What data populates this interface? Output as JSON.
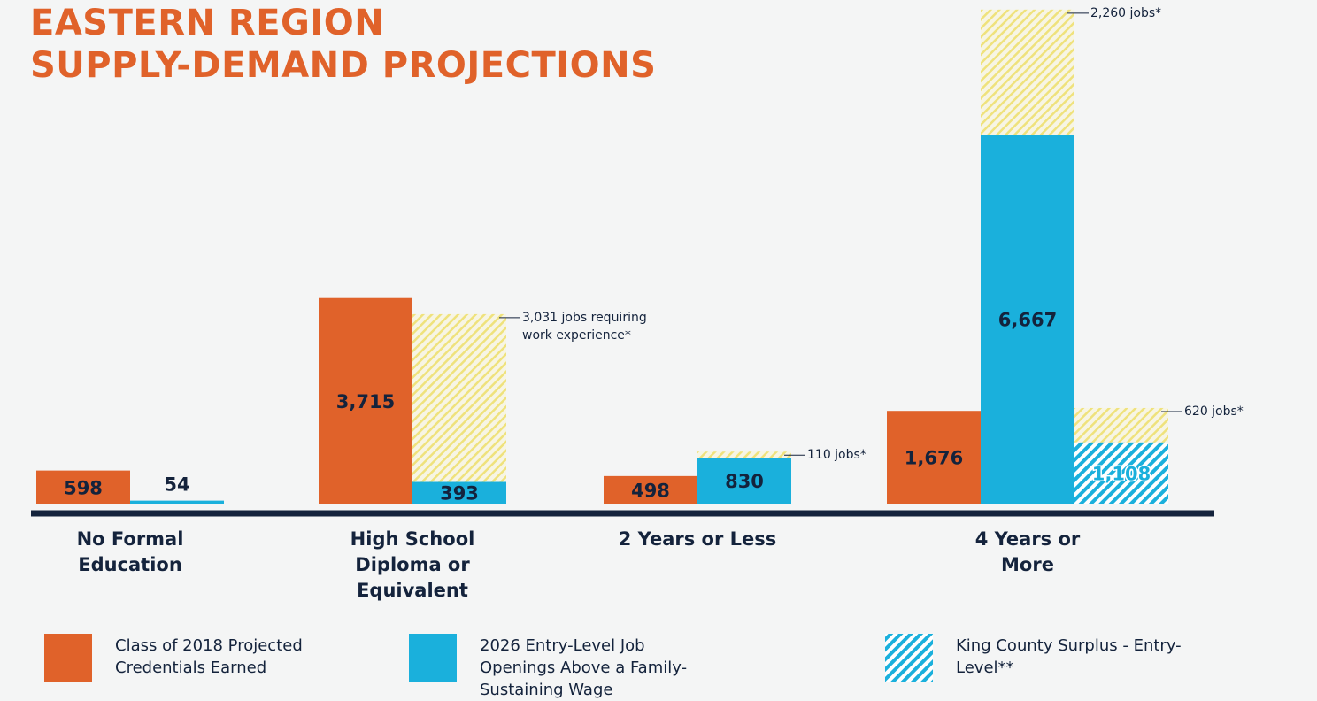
{
  "chart_data": {
    "type": "bar",
    "title": [
      "EASTERN REGION",
      "SUPPLY-DEMAND PROJECTIONS"
    ],
    "categories": [
      "No Formal Education",
      "High School Diploma or Equivalent",
      "2 Years or Less",
      "4 Years or More"
    ],
    "ylim": [
      0,
      9100
    ],
    "series": [
      {
        "name": "Class of 2018 Projected Credentials Earned",
        "color": "#e0622a",
        "values": [
          598,
          3715,
          498,
          1676
        ],
        "value_labels": [
          "598",
          "3,715",
          "498",
          "1,676"
        ]
      },
      {
        "name": "2026 Entry-Level Job Openings Above a Family-Sustaining Wage",
        "color": "#1ab0dc",
        "values": [
          54,
          393,
          830,
          6667
        ],
        "value_labels": [
          "54",
          "393",
          "830",
          "6,667"
        ]
      },
      {
        "color": "#efe27c",
        "values": [
          null,
          3031,
          110,
          2260
        ],
        "value_labels": [
          null,
          "3,031 jobs requiring work experience*",
          "110 jobs*",
          "2,260 jobs*"
        ]
      },
      {
        "name": "King County Surplus - Entry-Level**",
        "color": "#1ab0dc",
        "values": [
          null,
          null,
          null,
          1108
        ],
        "value_labels": [
          null,
          null,
          null,
          "1,108"
        ]
      },
      {
        "color": "#efe27c",
        "values": [
          null,
          null,
          null,
          620
        ],
        "value_labels": [
          null,
          null,
          null,
          "620 jobs*"
        ]
      }
    ]
  }
}
